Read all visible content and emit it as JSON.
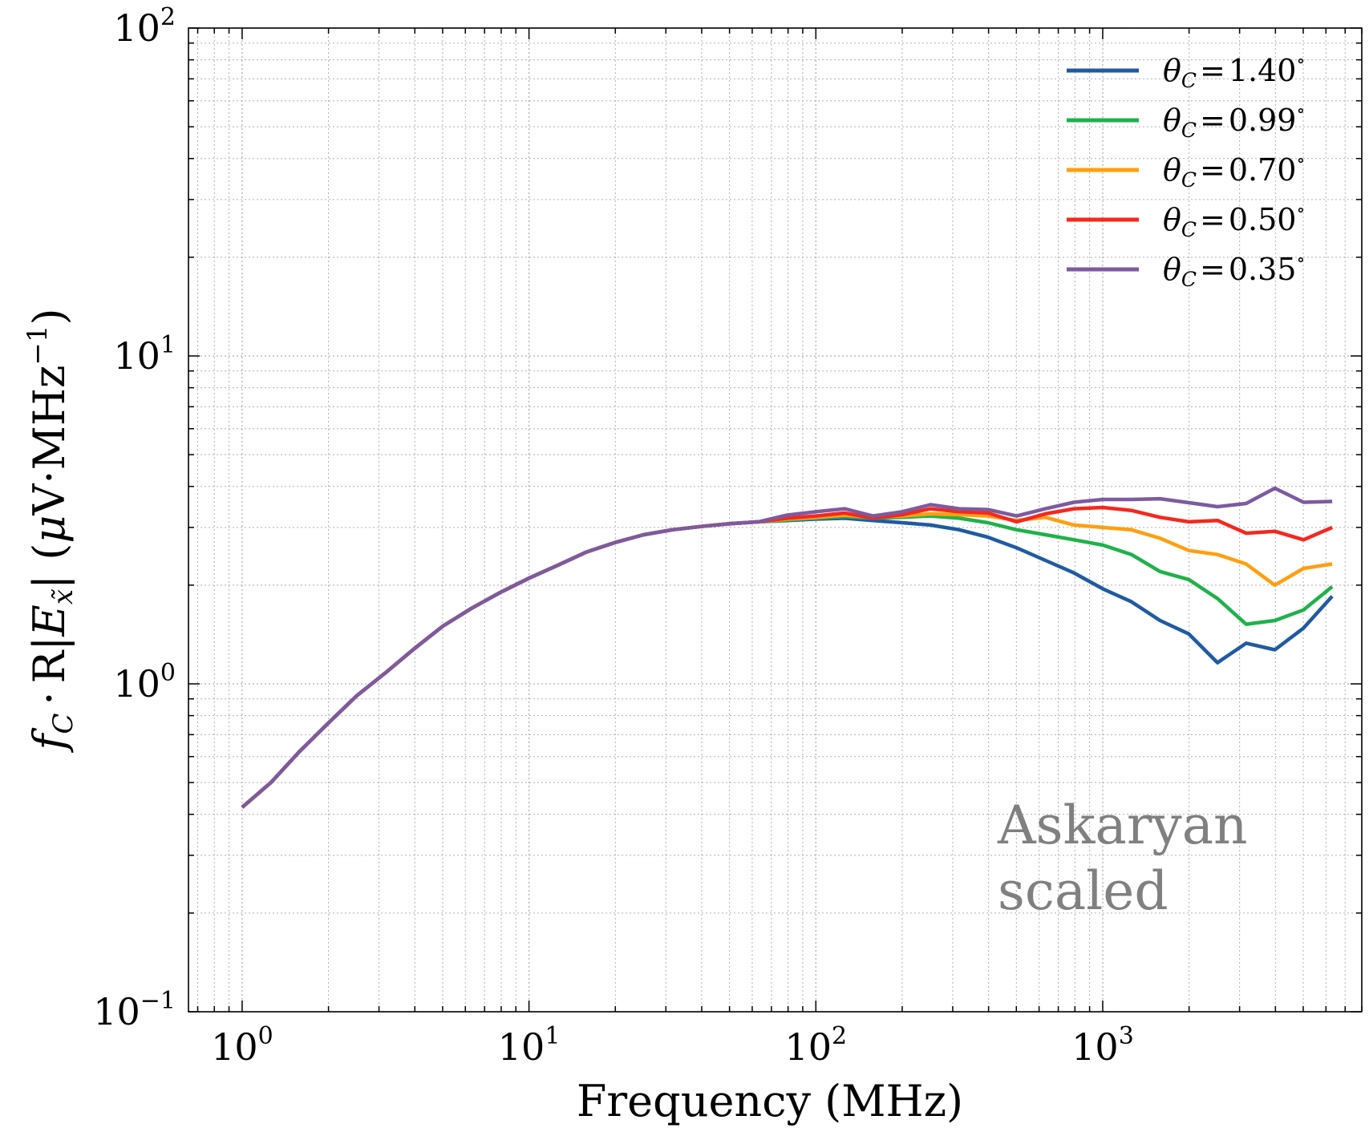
{
  "chart_data": {
    "type": "line",
    "x_scale": "log",
    "y_scale": "log",
    "xlabel": "Frequency (MHz)",
    "ylabel": {
      "f": "f",
      "f_sub": "C",
      "dot": "·",
      "R": "R",
      "bar": "|",
      "E": "E",
      "E_sub": "x̃",
      "unit_open": "(",
      "mu": "μ",
      "unit_main": "V·MHz",
      "unit_exp": "−1",
      "unit_close": ")"
    },
    "xlim": [
      0.65,
      8000
    ],
    "ylim": [
      0.1,
      100
    ],
    "x_ticks": [
      {
        "base": "10",
        "exp": "0",
        "value": 1
      },
      {
        "base": "10",
        "exp": "1",
        "value": 10
      },
      {
        "base": "10",
        "exp": "2",
        "value": 100
      },
      {
        "base": "10",
        "exp": "3",
        "value": 1000
      }
    ],
    "y_ticks": [
      {
        "base": "10",
        "exp": "−1",
        "value": 0.1
      },
      {
        "base": "10",
        "exp": "0",
        "value": 1
      },
      {
        "base": "10",
        "exp": "1",
        "value": 10
      },
      {
        "base": "10",
        "exp": "2",
        "value": 100
      }
    ],
    "grid": true,
    "legend_position": "top-right",
    "annotation": [
      "Askaryan",
      "scaled"
    ],
    "x": [
      1.0,
      1.26,
      1.58,
      2.0,
      2.51,
      3.16,
      3.98,
      5.01,
      6.31,
      7.94,
      10.0,
      12.6,
      15.8,
      20.0,
      25.1,
      31.6,
      39.8,
      50.1,
      63.1,
      79.4,
      100,
      126,
      158,
      200,
      251,
      316,
      398,
      501,
      631,
      794,
      1000,
      1259,
      1585,
      1995,
      2512,
      3162,
      3981,
      5012,
      6310
    ],
    "series": [
      {
        "name": "1.40",
        "legend": {
          "theta": "θ",
          "sub": "C",
          "eq": "=",
          "value": "1.40",
          "deg": "∘"
        },
        "color": "#1f5ba3",
        "values": [
          0.42,
          0.5,
          0.62,
          0.76,
          0.92,
          1.08,
          1.28,
          1.5,
          1.7,
          1.9,
          2.1,
          2.3,
          2.52,
          2.7,
          2.85,
          2.95,
          3.02,
          3.08,
          3.12,
          3.15,
          3.18,
          3.2,
          3.15,
          3.1,
          3.05,
          2.95,
          2.8,
          2.6,
          2.38,
          2.18,
          1.95,
          1.78,
          1.56,
          1.42,
          1.16,
          1.33,
          1.27,
          1.48,
          1.85
        ]
      },
      {
        "name": "0.99",
        "legend": {
          "theta": "θ",
          "sub": "C",
          "eq": "=",
          "value": "0.99",
          "deg": "∘"
        },
        "color": "#1fb24a",
        "values": [
          0.42,
          0.5,
          0.62,
          0.76,
          0.92,
          1.08,
          1.28,
          1.5,
          1.7,
          1.9,
          2.1,
          2.3,
          2.52,
          2.7,
          2.85,
          2.95,
          3.02,
          3.08,
          3.12,
          3.16,
          3.2,
          3.24,
          3.2,
          3.22,
          3.25,
          3.2,
          3.1,
          2.95,
          2.85,
          2.75,
          2.65,
          2.48,
          2.2,
          2.08,
          1.82,
          1.52,
          1.56,
          1.68,
          1.98
        ]
      },
      {
        "name": "0.70",
        "legend": {
          "theta": "θ",
          "sub": "C",
          "eq": "=",
          "value": "0.70",
          "deg": "∘"
        },
        "color": "#ff9f10",
        "values": [
          0.42,
          0.5,
          0.62,
          0.76,
          0.92,
          1.08,
          1.28,
          1.5,
          1.7,
          1.9,
          2.1,
          2.3,
          2.52,
          2.7,
          2.85,
          2.95,
          3.02,
          3.08,
          3.12,
          3.18,
          3.22,
          3.27,
          3.22,
          3.25,
          3.3,
          3.28,
          3.25,
          3.15,
          3.22,
          3.05,
          3.0,
          2.95,
          2.78,
          2.55,
          2.48,
          2.32,
          2.0,
          2.25,
          2.32
        ]
      },
      {
        "name": "0.50",
        "legend": {
          "theta": "θ",
          "sub": "C",
          "eq": "=",
          "value": "0.50",
          "deg": "∘"
        },
        "color": "#f5281e",
        "values": [
          0.42,
          0.5,
          0.62,
          0.76,
          0.92,
          1.08,
          1.28,
          1.5,
          1.7,
          1.9,
          2.1,
          2.3,
          2.52,
          2.7,
          2.85,
          2.95,
          3.02,
          3.08,
          3.12,
          3.2,
          3.25,
          3.32,
          3.2,
          3.28,
          3.42,
          3.35,
          3.32,
          3.12,
          3.3,
          3.42,
          3.45,
          3.38,
          3.22,
          3.12,
          3.15,
          2.88,
          2.92,
          2.75,
          3.0
        ]
      },
      {
        "name": "0.35",
        "legend": {
          "theta": "θ",
          "sub": "C",
          "eq": "=",
          "value": "0.35",
          "deg": "∘"
        },
        "color": "#7e5aa0",
        "values": [
          0.42,
          0.5,
          0.62,
          0.76,
          0.92,
          1.08,
          1.28,
          1.5,
          1.7,
          1.9,
          2.1,
          2.3,
          2.52,
          2.7,
          2.85,
          2.95,
          3.02,
          3.08,
          3.12,
          3.27,
          3.35,
          3.42,
          3.25,
          3.35,
          3.52,
          3.42,
          3.4,
          3.25,
          3.42,
          3.58,
          3.65,
          3.65,
          3.67,
          3.57,
          3.47,
          3.55,
          3.95,
          3.58,
          3.6
        ]
      }
    ]
  }
}
